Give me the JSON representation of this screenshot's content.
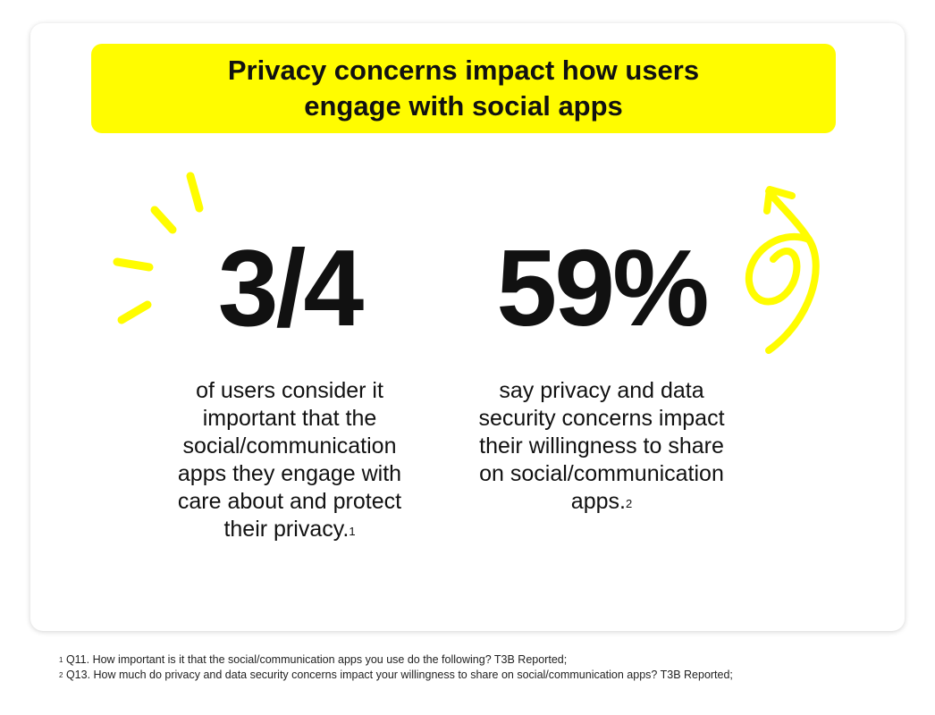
{
  "banner": {
    "title": "Privacy concerns impact how users engage with social apps",
    "color": "#FFFC00"
  },
  "stats": [
    {
      "value": "3/4",
      "description": "of users consider it important that the social/communication apps they engage with care about and protect their privacy.",
      "footnote_mark": "1"
    },
    {
      "value": "59%",
      "description": "say privacy and data security concerns impact their willingness to share on social/communication apps.",
      "footnote_mark": "2"
    }
  ],
  "footnotes": [
    {
      "mark": "1",
      "text": "Q11. How important is it that the social/communication apps you use do the following? T3B Reported;"
    },
    {
      "mark": "2",
      "text": "Q13. How much do privacy and data security concerns impact your willingness to share on social/communication apps? T3B Reported;"
    }
  ],
  "decorations": {
    "left": "burst-lines-icon",
    "right": "curly-arrow-icon",
    "color": "#FFFC00"
  }
}
